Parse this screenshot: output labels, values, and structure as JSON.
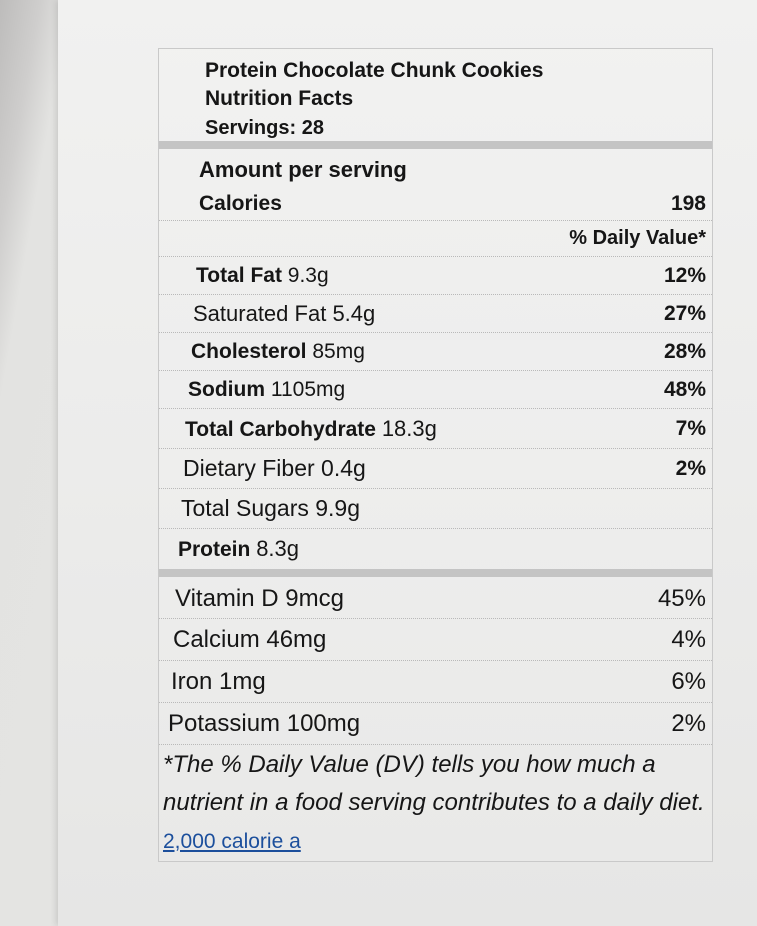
{
  "label": {
    "title": "Protein Chocolate Chunk Cookies",
    "subtitle": "Nutrition Facts",
    "servings": "Servings: 28",
    "amount_per_serving": "Amount per serving",
    "calories_label": "Calories",
    "calories_value": "198",
    "daily_value_header": "% Daily Value*",
    "nutrients": [
      {
        "name": "Total Fat",
        "amount": "9.3g",
        "dv": "12%"
      },
      {
        "name": "Saturated Fat",
        "amount": "5.4g",
        "dv": "27%"
      },
      {
        "name": "Cholesterol",
        "amount": "85mg",
        "dv": "28%"
      },
      {
        "name": "Sodium",
        "amount": "1105mg",
        "dv": "48%"
      },
      {
        "name": "Total Carbohydrate",
        "amount": "18.3g",
        "dv": "7%"
      },
      {
        "name": "Dietary Fiber",
        "amount": "0.4g",
        "dv": "2%"
      },
      {
        "name": "Total Sugars",
        "amount": "9.9g",
        "dv": ""
      },
      {
        "name": "Protein",
        "amount": "8.3g",
        "dv": ""
      }
    ],
    "vitamins": [
      {
        "name": "Vitamin D",
        "amount": "9mcg",
        "dv": "45%"
      },
      {
        "name": "Calcium",
        "amount": "46mg",
        "dv": "4%"
      },
      {
        "name": "Iron",
        "amount": "1mg",
        "dv": "6%"
      },
      {
        "name": "Potassium",
        "amount": "100mg",
        "dv": "2%"
      }
    ],
    "footnote": "*The % Daily Value (DV) tells you how much a nutrient in a food serving contributes to a daily diet.",
    "footnote_link": "2,000 calorie a"
  },
  "colors": {
    "link": "#1c4f9c",
    "separator_bar": "#c4c4c4"
  }
}
